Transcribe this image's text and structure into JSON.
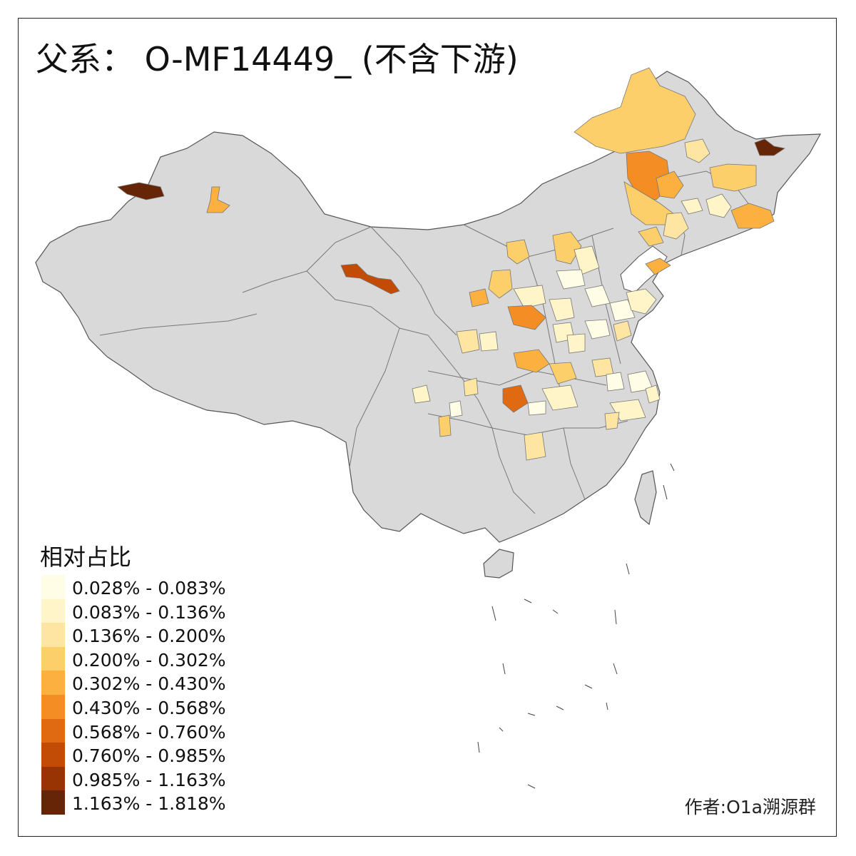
{
  "title": "父系： O-MF14449_ (不含下游)",
  "legend": {
    "title": "相对占比",
    "items": [
      {
        "label": "0.028% - 0.083%",
        "color": "#FFFDE6"
      },
      {
        "label": "0.083% - 0.136%",
        "color": "#FFF5C9"
      },
      {
        "label": "0.136% - 0.200%",
        "color": "#FEE6A2"
      },
      {
        "label": "0.200% - 0.302%",
        "color": "#FDCF6A"
      },
      {
        "label": "0.302% - 0.430%",
        "color": "#FBB03F"
      },
      {
        "label": "0.430% - 0.568%",
        "color": "#F48D24"
      },
      {
        "label": "0.568% - 0.760%",
        "color": "#E06A12"
      },
      {
        "label": "0.760% - 0.985%",
        "color": "#C24C06"
      },
      {
        "label": "0.985% - 1.163%",
        "color": "#983404"
      },
      {
        "label": "1.163% - 1.818%",
        "color": "#662506"
      }
    ]
  },
  "credit": "作者:O1a溯源群",
  "colors": {
    "base_region": "#D9D9D9",
    "border": "#555555",
    "frame": "#222222"
  }
}
